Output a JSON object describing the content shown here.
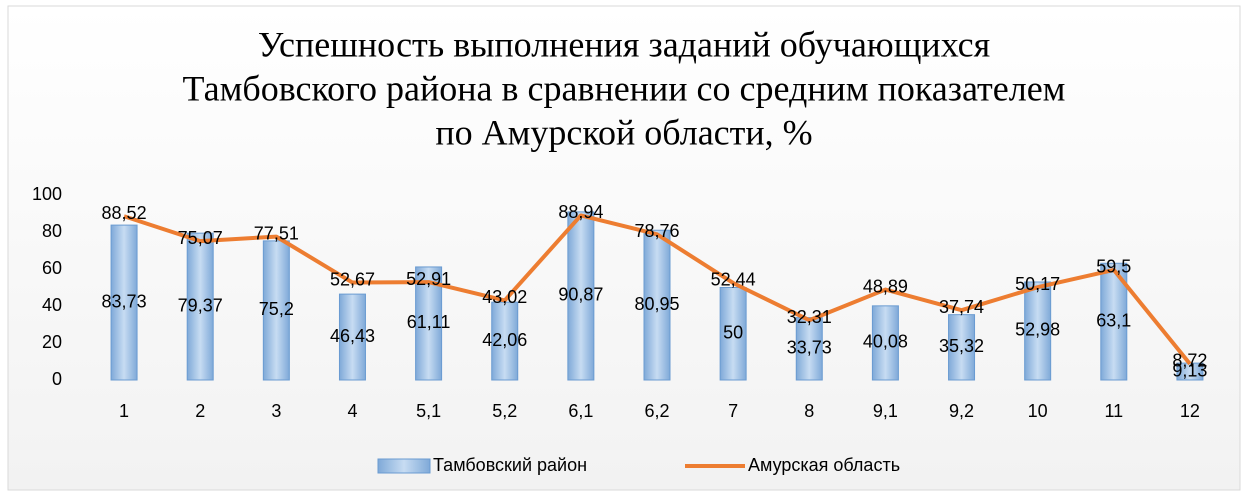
{
  "chart_data": {
    "type": "bar-line",
    "title": [
      "Успешность выполнения заданий обучающихся",
      "Тамбовского района в сравнении со средним показателем",
      "по Амурской области, %"
    ],
    "categories": [
      "1",
      "2",
      "3",
      "4",
      "5,1",
      "5,2",
      "6,1",
      "6,2",
      "7",
      "8",
      "9,1",
      "9,2",
      "10",
      "11",
      "12"
    ],
    "series": [
      {
        "name": "Тамбовский район",
        "type": "bar",
        "color": "#9dc3e6",
        "values": [
          83.73,
          79.37,
          75.2,
          46.43,
          61.11,
          42.06,
          90.87,
          80.95,
          50,
          33.73,
          40.08,
          35.32,
          52.98,
          63.1,
          9.13
        ],
        "value_labels": [
          "83,73",
          "79,37",
          "75,2",
          "46,43",
          "61,11",
          "42,06",
          "90,87",
          "80,95",
          "50",
          "33,73",
          "40,08",
          "35,32",
          "52,98",
          "63,1",
          "9,13"
        ]
      },
      {
        "name": "Амурская область",
        "type": "line",
        "color": "#ed7d31",
        "values": [
          88.52,
          75.07,
          77.51,
          52.67,
          52.91,
          43.02,
          88.94,
          78.76,
          52.44,
          32.31,
          48.89,
          37.74,
          50.17,
          59.5,
          8.72
        ],
        "value_labels": [
          "88,52",
          "75,07",
          "77,51",
          "52,67",
          "52,91",
          "43,02",
          "88,94",
          "78,76",
          "52,44",
          "32,31",
          "48,89",
          "37,74",
          "50,17",
          "59,5",
          "8,72"
        ]
      }
    ],
    "ylim": [
      0,
      100
    ],
    "yticks": [
      0,
      20,
      40,
      60,
      80,
      100
    ],
    "legend": "bottom"
  }
}
